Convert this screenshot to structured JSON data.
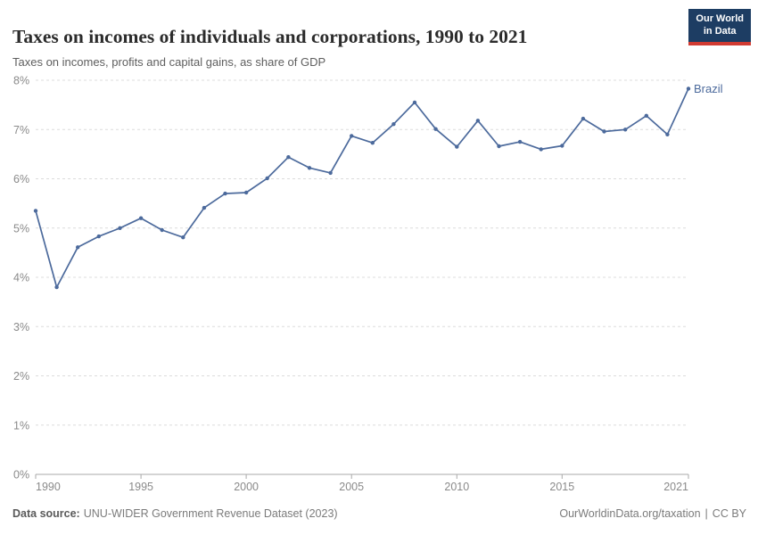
{
  "header": {
    "title": "Taxes on incomes of individuals and corporations, 1990 to 2021",
    "subtitle": "Taxes on incomes, profits and capital gains, as share of GDP"
  },
  "logo": {
    "line1": "Our World",
    "line2": "in Data",
    "bg_color": "#1d3d63",
    "accent_color": "#d13b32"
  },
  "chart_data": {
    "type": "line",
    "title": "Taxes on incomes of individuals and corporations, 1990 to 2021",
    "subtitle": "Taxes on incomes, profits and capital gains, as share of GDP",
    "xlabel": "",
    "ylabel": "",
    "xlim": [
      1990,
      2021
    ],
    "ylim": [
      0,
      8
    ],
    "x_ticks": [
      1990,
      1995,
      2000,
      2005,
      2010,
      2015,
      2021
    ],
    "y_ticks": [
      0,
      1,
      2,
      3,
      4,
      5,
      6,
      7,
      8
    ],
    "y_tick_suffix": "%",
    "grid": "horizontal-dashed",
    "legend": "end-of-line-label",
    "x": [
      1990,
      1991,
      1992,
      1993,
      1994,
      1995,
      1996,
      1997,
      1998,
      1999,
      2000,
      2001,
      2002,
      2003,
      2004,
      2005,
      2006,
      2007,
      2008,
      2009,
      2010,
      2011,
      2012,
      2013,
      2014,
      2015,
      2016,
      2017,
      2018,
      2019,
      2020,
      2021
    ],
    "series": [
      {
        "name": "Brazil",
        "color": "#4c6a9c",
        "values": [
          5.35,
          3.8,
          4.61,
          4.83,
          5.0,
          5.2,
          4.96,
          4.81,
          5.41,
          5.7,
          5.72,
          6.01,
          6.44,
          6.22,
          6.12,
          6.87,
          6.73,
          7.11,
          7.55,
          7.01,
          6.65,
          7.18,
          6.66,
          6.75,
          6.6,
          6.67,
          7.22,
          6.96,
          7.0,
          7.28,
          6.9,
          7.83
        ]
      }
    ]
  },
  "footer": {
    "source_label": "Data source:",
    "source_value": "UNU-WIDER Government Revenue Dataset (2023)",
    "link": "OurWorldinData.org/taxation",
    "separator": "|",
    "license": "CC BY"
  }
}
